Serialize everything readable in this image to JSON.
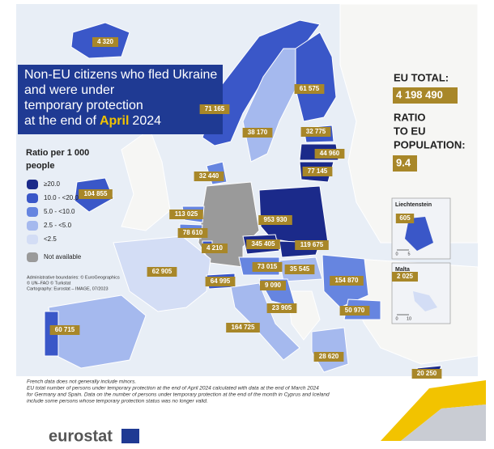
{
  "title": {
    "lines": [
      "Non-EU citizens who fled Ukraine",
      "and were under",
      "temporary protection"
    ],
    "last_line": {
      "prefix": "at the end of",
      "highlight": "April",
      "suffix": "2024"
    }
  },
  "eu_total": {
    "label": "EU TOTAL:",
    "value": "4 198 490"
  },
  "ratio": {
    "label_lines": [
      "RATIO",
      "TO EU",
      "POPULATION:"
    ],
    "value": "9.4"
  },
  "legend": {
    "title_lines": [
      "Ratio per 1 000",
      "people"
    ],
    "items": [
      {
        "label": "≥20.0",
        "color": "#1b2a8a"
      },
      {
        "label": "10.0 - <20.0",
        "color": "#3a57c8"
      },
      {
        "label": "5.0 - <10.0",
        "color": "#6685e0"
      },
      {
        "label": "2.5 - <5.0",
        "color": "#a5b9ee"
      },
      {
        "label": "<2.5",
        "color": "#d3ddf5"
      },
      {
        "label": "Not available",
        "color": "#9a9a9a"
      }
    ]
  },
  "credits": [
    "Administrative boundaries: © EuroGeographics",
    "© UN–FAO © Turkstat",
    "Cartography: Eurostat – IMAGE, 07/2023"
  ],
  "country_labels": [
    "4 320",
    "61 575",
    "71 165",
    "38 170",
    "32 775",
    "44 960",
    "77 145",
    "32 440",
    "104 855",
    "953 930",
    "113 025",
    "78 610",
    "4 210",
    "345 405",
    "119 675",
    "62 905",
    "73 015",
    "35 545",
    "154 870",
    "64 995",
    "9 090",
    "23 905",
    "50 970",
    "60 715",
    "164 725",
    "28 620",
    "20 250"
  ],
  "insets": [
    {
      "name": "Liechtenstein",
      "value": "605",
      "scale": [
        "0",
        "5"
      ]
    },
    {
      "name": "Malta",
      "value": "2 025",
      "scale": [
        "0",
        "10"
      ]
    }
  ],
  "notes": [
    "French data does not generally include minors.",
    "EU total number of persons under temporary protection at the end of April 2024 calculated with data at the end of March 2024",
    "for Germany and Spain. Data on the number of persons under temporary protection at the end of the month in Cyprus and Iceland",
    "include some persons whose temporary protection status was no longer valid."
  ],
  "logo": "eurostat"
}
